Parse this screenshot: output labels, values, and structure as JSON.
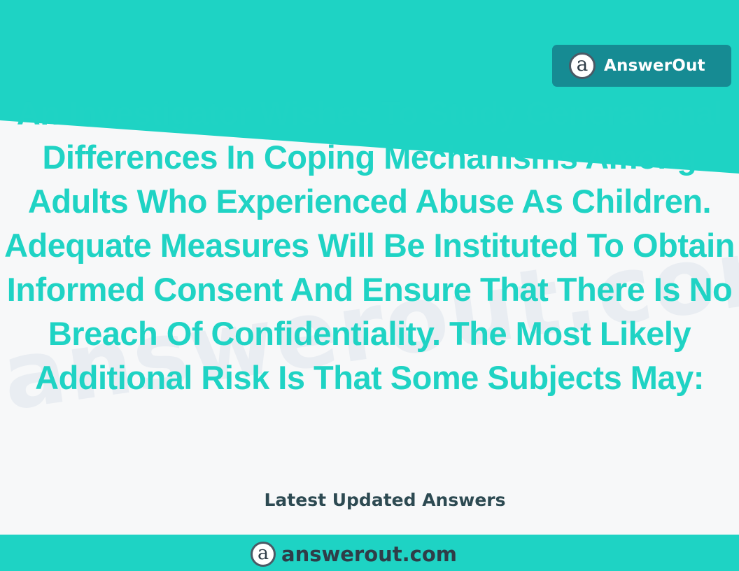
{
  "colors": {
    "accent_teal": "#1ed3c4",
    "badge_teal": "#168b93",
    "background": "#f7f8f9",
    "title_text": "#1fd3c4",
    "label_text": "#2d4a52",
    "logo_dark": "#2f3d48"
  },
  "brand": {
    "logo_glyph": "a",
    "logo_icon": "at-sign-logo-icon",
    "name": "AnswerOut"
  },
  "watermark": {
    "text": "answerout.com"
  },
  "question": {
    "title": "An Investigator Wishes To Study Generational Differences In Coping Mechanisms Among Adults Who Experienced Abuse As Children. Adequate Measures Will Be Instituted To Obtain Informed Consent And Ensure That There Is No Breach Of Confidentiality. The Most Likely Additional Risk Is That Some Subjects May:"
  },
  "latest_label": "Latest Updated Answers",
  "footer": {
    "logo_glyph": "a",
    "domain": "answerout.com"
  }
}
